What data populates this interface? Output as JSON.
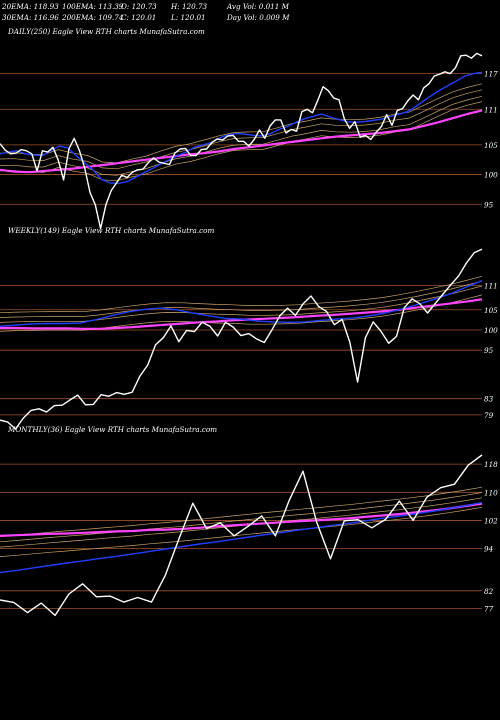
{
  "header": {
    "row1": [
      "20EMA: 118.93",
      "100EMA: 113.39",
      "O: 120.73",
      "H: 120.73",
      "Avg Vol: 0.011 M"
    ],
    "row2": [
      "30EMA: 116.96",
      "200EMA: 109.74",
      "C: 120.01",
      "L: 120.01",
      "Day Vol: 0.009 M"
    ]
  },
  "colors": {
    "background": "#000000",
    "price": "#ffffff",
    "ema_fast": "#1f3fff",
    "ema_slow": "#ff44ff",
    "ema_mid": "#c8a468",
    "level": "#a0522d"
  },
  "chart_data": [
    {
      "type": "line",
      "caption": "DAILY(250) Eagle   View  RTH charts MunafaSutra.com",
      "ylim": [
        91,
        123
      ],
      "levels": [
        117,
        111,
        105,
        100,
        95
      ],
      "tick_labels": [
        "117",
        "111",
        "105",
        "100",
        "95"
      ],
      "series": [
        {
          "role": "price",
          "values": [
            105.2,
            104.1,
            103.5,
            103.6,
            104.2,
            104.0,
            103.5,
            100.6,
            104.0,
            103.8,
            104.6,
            102.4,
            99.1,
            104.3,
            106.1,
            104.0,
            101.1,
            97.0,
            94.9,
            90.9,
            94.9,
            97.3,
            98.6,
            99.9,
            99.5,
            100.4,
            100.8,
            100.9,
            102.0,
            102.8,
            102.1,
            101.9,
            101.7,
            103.6,
            104.3,
            104.4,
            103.2,
            103.2,
            104.2,
            104.3,
            105.4,
            106.0,
            105.8,
            106.5,
            106.6,
            105.6,
            105.6,
            104.8,
            105.9,
            107.5,
            106.1,
            108.2,
            109.2,
            109.2,
            107.0,
            107.6,
            107.3,
            110.6,
            111.0,
            110.4,
            112.5,
            114.8,
            114.1,
            112.9,
            112.6,
            109.4,
            107.8,
            108.9,
            106.3,
            106.6,
            105.9,
            107.1,
            108.1,
            110.1,
            108.3,
            110.8,
            111.1,
            112.4,
            113.4,
            112.6,
            114.6,
            115.3,
            116.6,
            116.9,
            117.3,
            117.0,
            118.0,
            120.0,
            120.1,
            119.6,
            120.4,
            120.0
          ]
        },
        {
          "role": "ema_fast",
          "values": [
            103.5,
            103.8,
            104.0,
            103.5,
            103.3,
            103.2,
            104.0,
            104.8,
            104.5,
            103.2,
            102.0,
            100.8,
            99.2,
            98.6,
            98.5,
            98.8,
            99.5,
            100.3,
            101.0,
            101.8,
            102.5,
            103.2,
            103.8,
            104.6,
            105.0,
            105.4,
            106.2,
            106.7,
            106.9,
            106.8,
            106.6,
            106.5,
            106.9,
            107.6,
            108.1,
            108.8,
            109.4,
            109.8,
            110.2,
            109.7,
            109.3,
            108.9,
            108.8,
            108.9,
            109.1,
            109.3,
            109.7,
            110.1,
            110.5,
            111.3,
            112.3,
            113.3,
            114.2,
            115.0,
            115.8,
            116.6,
            117.0,
            117.2
          ]
        },
        {
          "role": "ema_slow",
          "values": [
            100.8,
            100.5,
            100.4,
            100.6,
            100.8,
            101.0,
            101.3,
            101.6,
            101.9,
            102.2,
            102.5,
            102.8,
            103.1,
            103.4,
            103.6,
            103.9,
            104.3,
            104.6,
            104.9,
            105.2,
            105.5,
            105.8,
            106.1,
            106.4,
            106.6,
            106.8,
            107.0,
            107.3,
            107.6,
            108.2,
            108.8,
            109.5,
            110.2,
            110.8
          ]
        }
      ]
    },
    {
      "type": "line",
      "caption": "WEEKLY(149) Eagle   View  RTH charts MunafaSutra.com",
      "ylim": [
        76,
        123
      ],
      "levels": [
        111,
        105,
        100,
        95,
        83,
        79
      ],
      "tick_labels": [
        "111",
        "105",
        "100",
        "95",
        "83",
        "79"
      ],
      "series": [
        {
          "role": "price",
          "values": [
            77.7,
            77.2,
            75.5,
            78.2,
            80.1,
            80.5,
            79.7,
            81.3,
            81.4,
            82.7,
            83.9,
            81.5,
            81.6,
            84.0,
            83.6,
            84.5,
            84.1,
            84.6,
            88.6,
            91.3,
            96.3,
            98.1,
            101.0,
            97.1,
            99.9,
            99.6,
            101.9,
            100.9,
            98.5,
            101.9,
            100.7,
            98.6,
            99.1,
            97.8,
            96.9,
            100.1,
            103.5,
            105.4,
            103.6,
            106.5,
            108.4,
            105.8,
            104.6,
            101.3,
            102.6,
            97.0,
            87.1,
            98.1,
            102.0,
            99.7,
            96.7,
            98.4,
            105.5,
            107.7,
            106.5,
            104.2,
            106.6,
            108.9,
            111.2,
            113.4,
            116.6,
            119.1,
            120.0
          ]
        },
        {
          "role": "ema_fast",
          "values": [
            100.9,
            101.2,
            101.5,
            101.6,
            101.6,
            101.7,
            102.6,
            103.6,
            104.5,
            105.1,
            105.4,
            105.0,
            104.2,
            103.5,
            102.9,
            102.7,
            102.2,
            102.0,
            101.9,
            102.0,
            102.4,
            102.7,
            103.0,
            103.5,
            104.2,
            105.2,
            106.3,
            107.6,
            108.9,
            110.6,
            112.2
          ]
        },
        {
          "role": "ema_slow",
          "values": [
            100.5,
            100.5,
            100.4,
            100.4,
            100.4,
            100.3,
            100.3,
            100.5,
            100.7,
            101.0,
            101.3,
            101.6,
            101.9,
            102.1,
            102.4,
            102.6,
            102.8,
            103.0,
            103.2,
            103.5,
            103.7,
            104.0,
            104.3,
            104.6,
            105.0,
            105.5,
            106.0,
            106.5,
            107.0,
            107.6
          ]
        }
      ]
    },
    {
      "type": "line",
      "caption": "MONTHLY(36) Eagle   View  RTH charts MunafaSutra.com",
      "ylim": [
        72,
        126
      ],
      "levels": [
        118,
        110,
        102,
        94,
        82,
        77
      ],
      "tick_labels": [
        "118",
        "110",
        "102",
        "94",
        "82",
        "77"
      ],
      "series": [
        {
          "role": "price",
          "values": [
            79.4,
            78.7,
            75.8,
            78.5,
            75.0,
            81.1,
            84.0,
            80.3,
            80.5,
            78.8,
            80.1,
            78.8,
            86.4,
            96.8,
            106.9,
            99.7,
            101.3,
            97.6,
            100.3,
            103.3,
            97.6,
            107.7,
            116.0,
            101.5,
            91.1,
            101.9,
            102.2,
            99.9,
            102.3,
            107.5,
            102.0,
            108.6,
            111.3,
            112.3,
            117.7,
            120.6
          ]
        },
        {
          "role": "ema_fast",
          "values": [
            87.2,
            87.8,
            88.5,
            89.2,
            89.9,
            90.5,
            91.2,
            91.8,
            92.5,
            93.2,
            93.9,
            94.6,
            95.3,
            95.9,
            96.6,
            97.3,
            98.0,
            98.6,
            99.3,
            99.9,
            100.6,
            101.2,
            101.9,
            102.6,
            103.2,
            103.9,
            104.6,
            105.4,
            106.2,
            107.1
          ]
        },
        {
          "role": "ema_slow",
          "values": [
            97.6,
            97.8,
            98.0,
            98.2,
            98.3,
            98.5,
            98.7,
            98.9,
            99.0,
            99.3,
            99.4,
            99.6,
            99.9,
            100.3,
            100.6,
            100.9,
            101.2,
            101.5,
            101.8,
            102.0,
            102.3,
            102.6,
            103.0,
            103.4,
            103.8,
            104.3,
            104.8,
            105.4,
            106.1,
            106.8
          ]
        }
      ]
    }
  ]
}
